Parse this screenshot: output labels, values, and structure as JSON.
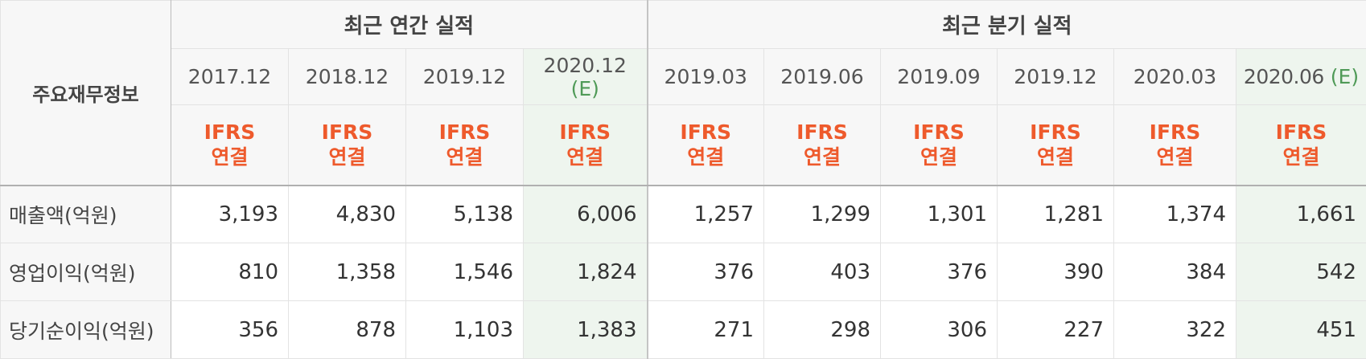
{
  "header": {
    "row_title": "주요재무정보",
    "annual_group": "최근 연간 실적",
    "quarter_group": "최근 분기 실적"
  },
  "annual_periods": [
    {
      "label": "2017.12",
      "est": ""
    },
    {
      "label": "2018.12",
      "est": ""
    },
    {
      "label": "2019.12",
      "est": ""
    },
    {
      "label": "2020.12",
      "est": "(E)"
    }
  ],
  "quarter_periods": [
    {
      "label": "2019.03",
      "est": ""
    },
    {
      "label": "2019.06",
      "est": ""
    },
    {
      "label": "2019.09",
      "est": ""
    },
    {
      "label": "2019.12",
      "est": ""
    },
    {
      "label": "2020.03",
      "est": ""
    },
    {
      "label": "2020.06",
      "est": "(E)"
    }
  ],
  "basis": {
    "line1": "IFRS",
    "line2": "연결"
  },
  "rows": [
    {
      "label": "매출액(억원)",
      "values": [
        "3,193",
        "4,830",
        "5,138",
        "6,006",
        "1,257",
        "1,299",
        "1,301",
        "1,281",
        "1,374",
        "1,661"
      ]
    },
    {
      "label": "영업이익(억원)",
      "values": [
        "810",
        "1,358",
        "1,546",
        "1,824",
        "376",
        "403",
        "376",
        "390",
        "384",
        "542"
      ]
    },
    {
      "label": "당기순이익(억원)",
      "values": [
        "356",
        "878",
        "1,103",
        "1,383",
        "271",
        "298",
        "306",
        "227",
        "322",
        "451"
      ]
    }
  ],
  "colors": {
    "header_bg": "#f7f7f7",
    "estimate_bg": "#eef5ee",
    "ifrs_text": "#ee5a2c",
    "estimate_mark": "#4f9a57"
  }
}
